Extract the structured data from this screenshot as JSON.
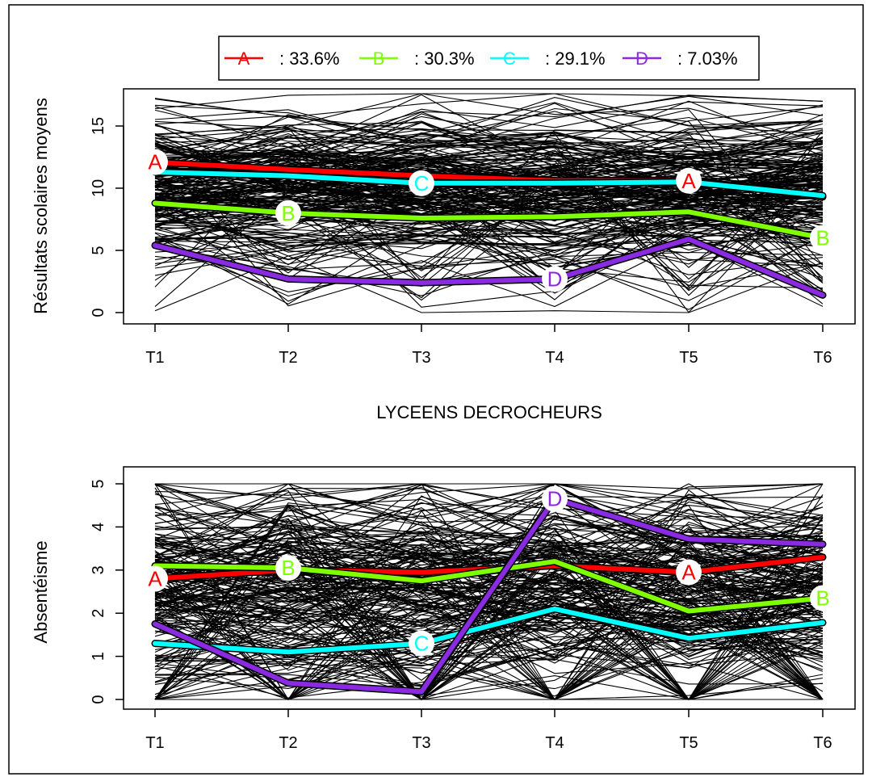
{
  "legend": {
    "entries": [
      {
        "letter": "A",
        "pct": ": 33.6%",
        "color": "#ff0000"
      },
      {
        "letter": "B",
        "pct": ": 30.3%",
        "color": "#7fff00"
      },
      {
        "letter": "C",
        "pct": ": 29.1%",
        "color": "#00ffff"
      },
      {
        "letter": "D",
        "pct": ": 7.03%",
        "color": "#8a2be2"
      }
    ]
  },
  "middle_title": "LYCEENS DECROCHEURS",
  "chart_data": [
    {
      "type": "line",
      "ylabel": "Résultats scolaires moyens",
      "xlabel": "",
      "categories": [
        "T1",
        "T2",
        "T3",
        "T4",
        "T5",
        "T6"
      ],
      "yticks": [
        0,
        5,
        10,
        15
      ],
      "ylim": [
        0,
        17.5
      ],
      "background_lines": "many individual black trajectories",
      "series": [
        {
          "name": "A",
          "color": "#ff0000",
          "values": [
            12.1,
            11.5,
            11.0,
            10.6,
            10.6,
            9.3
          ],
          "labels_at": [
            0,
            4
          ]
        },
        {
          "name": "B",
          "color": "#7fff00",
          "values": [
            8.8,
            8.0,
            7.6,
            7.7,
            8.1,
            6.0
          ],
          "labels_at": [
            1,
            5
          ]
        },
        {
          "name": "C",
          "color": "#00ffff",
          "values": [
            11.3,
            11.0,
            10.4,
            10.4,
            10.5,
            9.4
          ],
          "labels_at": [
            2
          ]
        },
        {
          "name": "D",
          "color": "#8a2be2",
          "values": [
            5.4,
            2.7,
            2.4,
            2.7,
            5.9,
            1.4
          ],
          "labels_at": [
            3
          ]
        }
      ]
    },
    {
      "type": "line",
      "ylabel": "Absentéisme",
      "xlabel": "",
      "categories": [
        "T1",
        "T2",
        "T3",
        "T4",
        "T5",
        "T6"
      ],
      "yticks": [
        0,
        1,
        2,
        3,
        4,
        5
      ],
      "ylim": [
        0,
        5.1
      ],
      "background_lines": "many individual black trajectories",
      "series": [
        {
          "name": "A",
          "color": "#ff0000",
          "values": [
            2.8,
            3.0,
            2.95,
            3.1,
            2.95,
            3.3
          ],
          "labels_at": [
            0,
            4
          ]
        },
        {
          "name": "B",
          "color": "#7fff00",
          "values": [
            3.1,
            3.05,
            2.75,
            3.2,
            2.05,
            2.35
          ],
          "labels_at": [
            1,
            5
          ]
        },
        {
          "name": "C",
          "color": "#00ffff",
          "values": [
            1.3,
            1.1,
            1.3,
            2.1,
            1.42,
            1.78
          ],
          "labels_at": [
            2
          ]
        },
        {
          "name": "D",
          "color": "#8a2be2",
          "values": [
            1.75,
            0.38,
            0.18,
            4.65,
            3.72,
            3.6
          ],
          "labels_at": [
            3
          ]
        }
      ]
    }
  ]
}
